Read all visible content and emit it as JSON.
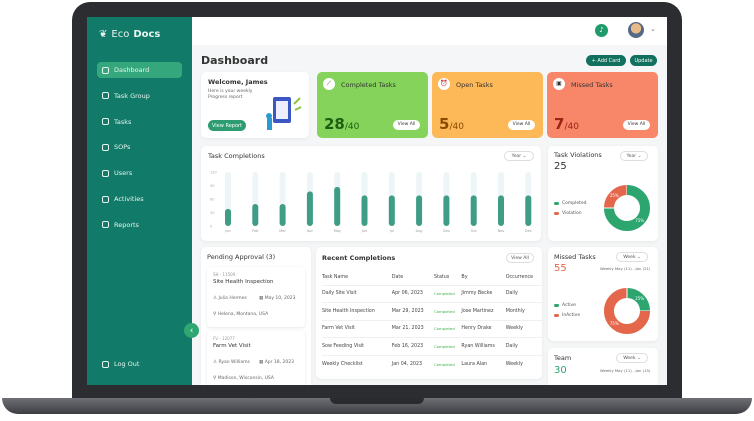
{
  "app": {
    "logo_light": "Eco",
    "logo_bold": "Docs"
  },
  "sidebar": {
    "items": [
      {
        "label": "Dashboard",
        "icon": "dashboard-icon",
        "active": true
      },
      {
        "label": "Task Group",
        "icon": "clipboard-icon"
      },
      {
        "label": "Tasks",
        "icon": "list-icon"
      },
      {
        "label": "SOPs",
        "icon": "document-icon"
      },
      {
        "label": "Users",
        "icon": "users-icon"
      },
      {
        "label": "Activities",
        "icon": "activities-icon"
      },
      {
        "label": "Reports",
        "icon": "reports-icon"
      }
    ],
    "logout": "Log Out"
  },
  "header": {
    "title": "Dashboard",
    "add_card": "+ Add Card",
    "update": "Update"
  },
  "welcome": {
    "title": "Welcome, James",
    "subtitle1": "Here is your weekly",
    "subtitle2": "Progress report",
    "button": "View Report"
  },
  "stats": [
    {
      "label": "Completed Tasks",
      "value": "28",
      "total": "/40",
      "view": "View All",
      "color": "#86d35c",
      "num_color": "#1d5e10"
    },
    {
      "label": "Open Tasks",
      "value": "5",
      "total": "/40",
      "view": "View All",
      "color": "#fdb857",
      "num_color": "#8a4b00"
    },
    {
      "label": "Missed Tasks",
      "value": "7",
      "total": "/40",
      "view": "View All",
      "color": "#f8876a",
      "num_color": "#9b2414"
    }
  ],
  "chart_data": {
    "type": "bar",
    "title": "Task Completions",
    "filter": "Year",
    "categories": [
      "Jan",
      "Feb",
      "Mar",
      "Apr",
      "May",
      "Jun",
      "Jul",
      "Aug",
      "Sep",
      "Oct",
      "Nov",
      "Dec"
    ],
    "values": [
      38,
      49,
      49,
      77,
      87,
      68,
      68,
      68,
      68,
      68,
      68,
      68
    ],
    "yticks": [
      "0",
      "30",
      "60",
      "90",
      "120"
    ],
    "ylim": [
      0,
      120
    ],
    "color": "#3f9c85"
  },
  "violations": {
    "title": "Task Violations",
    "value": "25",
    "filter": "Year",
    "legend": [
      "Completed",
      "Violation"
    ],
    "pct": [
      75,
      25
    ],
    "labels": [
      "75%",
      "25%"
    ]
  },
  "missed": {
    "title": "Missed Tasks",
    "value": "55",
    "filter": "Week",
    "range": "Weekly May (11) - Jan (21)",
    "legend": [
      "Active",
      "InActive"
    ],
    "pct": [
      25,
      75
    ],
    "labels": [
      "25%",
      "75%"
    ]
  },
  "team": {
    "title": "Team",
    "value": "30",
    "filter": "Week",
    "range": "Weekly May (11) - Jan (15)"
  },
  "pending": {
    "title": "Pending Approval (3)",
    "items": [
      {
        "code": "SH - 11500",
        "name": "Site Health Inspection",
        "user": "Julia Hermes",
        "date": "May 10, 2023",
        "location": "Helena, Montana, USA"
      },
      {
        "code": "FV - 12077",
        "name": "Farm Vet Visit",
        "user": "Ryan Williams",
        "date": "Apr 18, 2023",
        "location": "Madison, Wisconsin, USA"
      }
    ]
  },
  "recent": {
    "title": "Recent Completions",
    "view_all": "View All",
    "columns": [
      "Task Name",
      "Date",
      "Status",
      "By",
      "Occurrence"
    ],
    "rows": [
      [
        "Daily Site Visit",
        "Apr 06, 2023",
        "Completed",
        "Jimmy Becke",
        "Daily"
      ],
      [
        "Site Health Inspection",
        "Mar 29, 2023",
        "Completed",
        "Jose Martinez",
        "Monthly"
      ],
      [
        "Farm Vet Visit",
        "Mar 21, 2023",
        "Completed",
        "Henry Drake",
        "Weekly"
      ],
      [
        "Sow Feeding Visit",
        "Feb 16, 2023",
        "Completed",
        "Ryan Williams",
        "Daily"
      ],
      [
        "Weekly Checklist",
        "Jan 04, 2023",
        "Completed",
        "Laura Alan",
        "Weekly"
      ]
    ]
  }
}
